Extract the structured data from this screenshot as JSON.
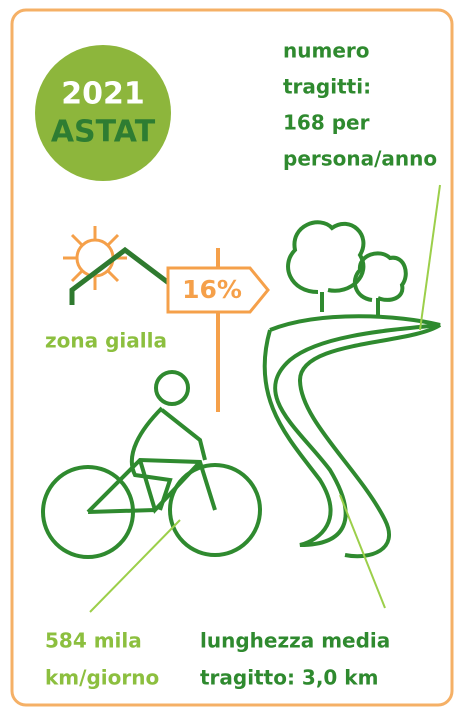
{
  "badge": {
    "year": "2021",
    "source": "ASTAT"
  },
  "trips": {
    "lines": [
      "numero",
      "tragitti:",
      "168 per",
      "persona/anno"
    ]
  },
  "sign": {
    "label": "16%"
  },
  "zone": {
    "label": "zona gialla"
  },
  "distance": {
    "lines": [
      "584 mila",
      "km/giorno"
    ]
  },
  "length": {
    "lines": [
      "lunghezza media",
      "tragitto: 3,0 km"
    ]
  }
}
